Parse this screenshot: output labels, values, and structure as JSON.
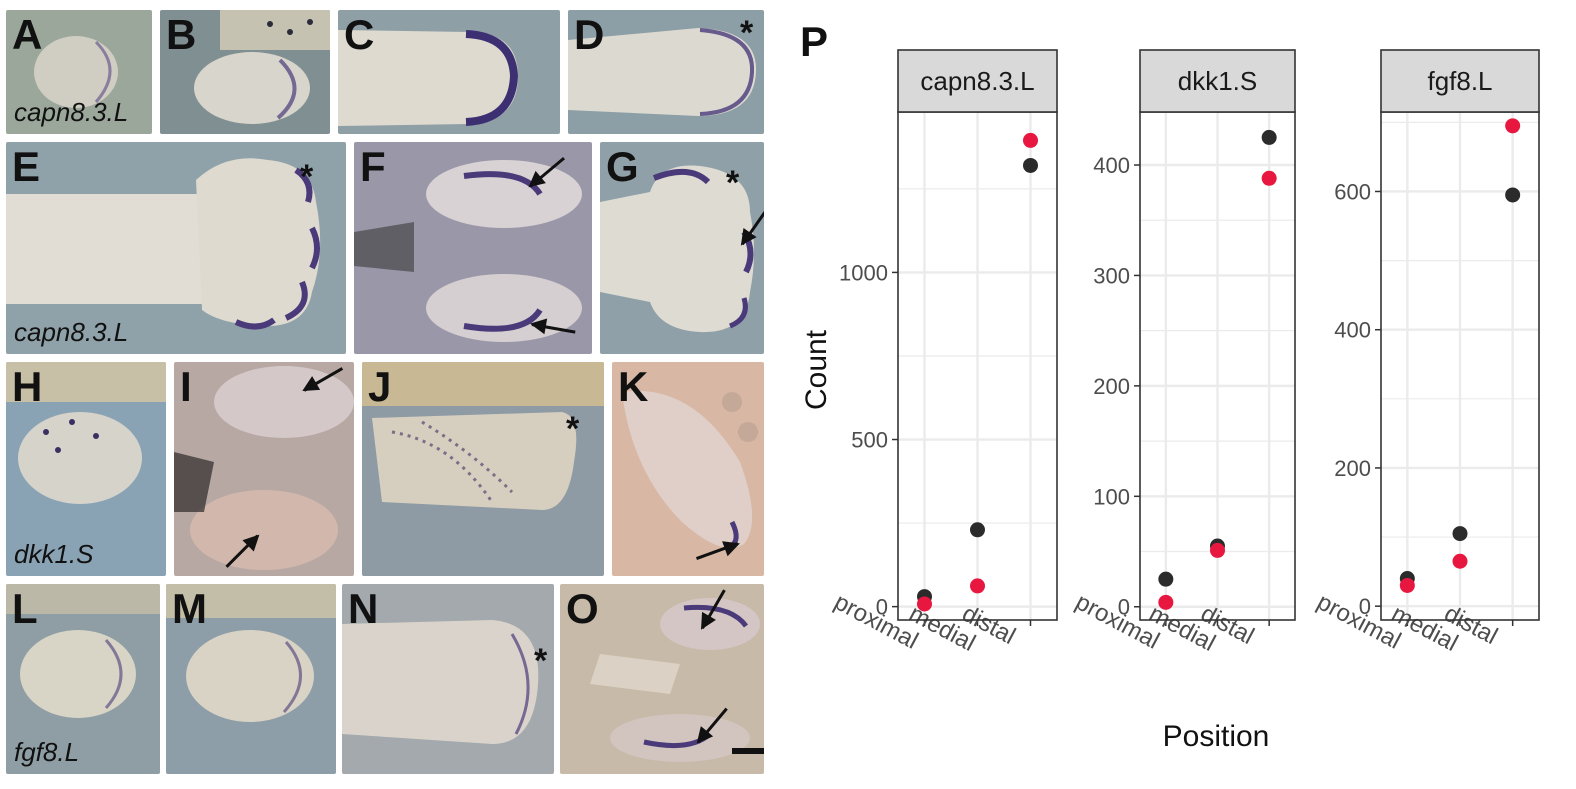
{
  "panel_letters": [
    "A",
    "B",
    "C",
    "D",
    "E",
    "F",
    "G",
    "H",
    "I",
    "J",
    "K",
    "L",
    "M",
    "N",
    "O"
  ],
  "gene_labels": {
    "row1": "capn8.3.L",
    "row2": "capn8.3.L",
    "row3": "dkk1.S",
    "row4": "fgf8.L"
  },
  "chart_label": "P",
  "colors": {
    "black_series": "#2b2b2b",
    "red_series": "#e8173f",
    "strip": "#d9d9d9",
    "grid": "#ebebeb",
    "frame": "#333333",
    "stain": "#4a3a7a"
  },
  "chart_data": {
    "type": "scatter",
    "ylabel": "Count",
    "xlabel": "Position",
    "categories": [
      "proximal",
      "medial",
      "distal"
    ],
    "grid": true,
    "panels": [
      {
        "title": "capn8.3.L",
        "ylim": [
          -40,
          1480
        ],
        "yticks": [
          0,
          500,
          1000
        ],
        "series": [
          {
            "color": "#2b2b2b",
            "values": [
              30,
              230,
              1320
            ]
          },
          {
            "color": "#e8173f",
            "values": [
              8,
              62,
              1395
            ]
          }
        ]
      },
      {
        "title": "dkk1.S",
        "ylim": [
          -12,
          448
        ],
        "yticks": [
          0,
          100,
          200,
          300,
          400
        ],
        "series": [
          {
            "color": "#2b2b2b",
            "values": [
              25,
              55,
              425
            ]
          },
          {
            "color": "#e8173f",
            "values": [
              4,
              51,
              388
            ]
          }
        ]
      },
      {
        "title": "fgf8.L",
        "ylim": [
          -20,
          715
        ],
        "yticks": [
          0,
          200,
          400,
          600
        ],
        "series": [
          {
            "color": "#2b2b2b",
            "values": [
              40,
              105,
              595
            ]
          },
          {
            "color": "#e8173f",
            "values": [
              30,
              65,
              695
            ]
          }
        ]
      }
    ]
  }
}
